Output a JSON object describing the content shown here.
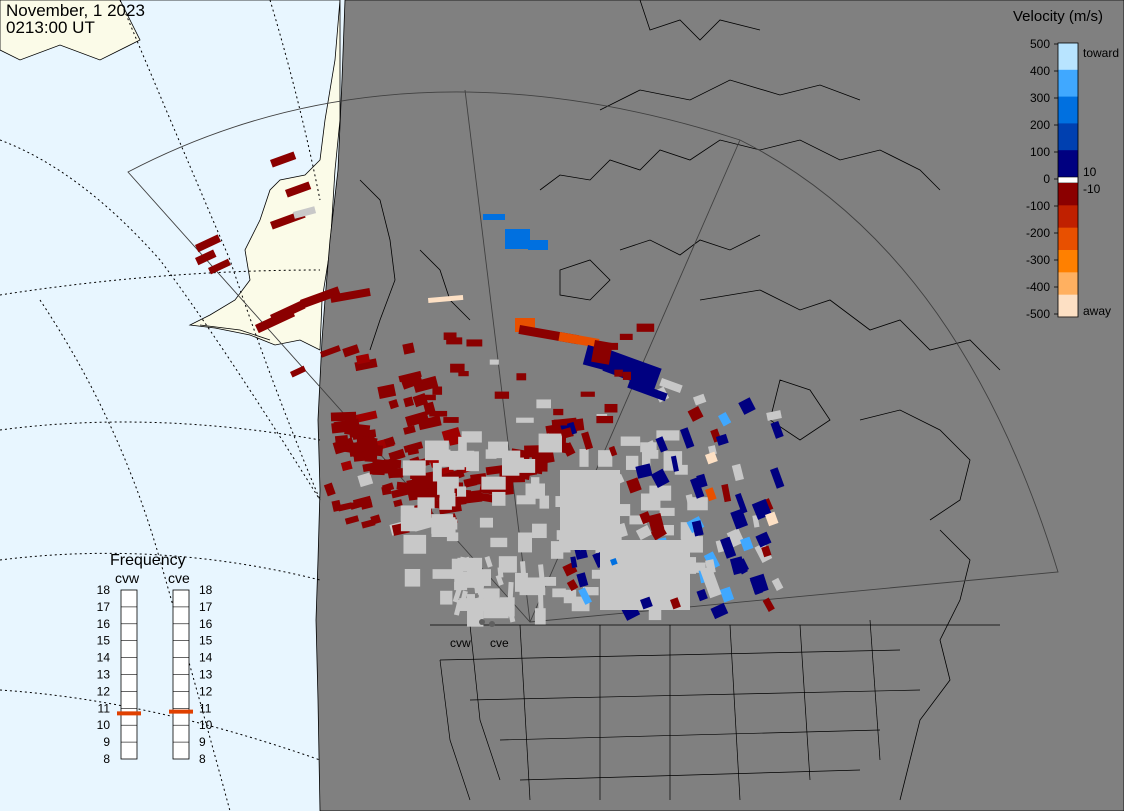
{
  "header": {
    "date": "November, 1 2023",
    "time": "0213:00 UT"
  },
  "colorbar": {
    "title": "Velocity (m/s)",
    "ticks": [
      "500",
      "400",
      "300",
      "200",
      "100",
      "0",
      "-100",
      "-200",
      "-300",
      "-400",
      "-500"
    ],
    "label_10": "10",
    "label_neg10": "-10",
    "toward": "toward",
    "away": "away",
    "colors": [
      "#fde0c4",
      "#ffb060",
      "#ff8000",
      "#e85000",
      "#c02000",
      "#8b0000",
      "#000080",
      "#0040b0",
      "#0070e0",
      "#40a8ff",
      "#b8e4ff"
    ],
    "zero_color": "#ffffff",
    "ground_scatter_color": "#c8c8c8"
  },
  "frequency_panel": {
    "title": "Frequency",
    "radars": [
      {
        "name": "cvw",
        "value_mhz": 10.7
      },
      {
        "name": "cve",
        "value_mhz": 10.8
      }
    ],
    "levels": [
      "18",
      "17",
      "16",
      "15",
      "14",
      "13",
      "12",
      "11",
      "10",
      "9",
      "8"
    ],
    "marker_color": "#e04000"
  },
  "map": {
    "radar_labels": [
      "cvw",
      "cve"
    ],
    "land_color": "#808080",
    "alaska_land_color": "#fbfbe8",
    "ocean_color": "#e8f6ff"
  }
}
